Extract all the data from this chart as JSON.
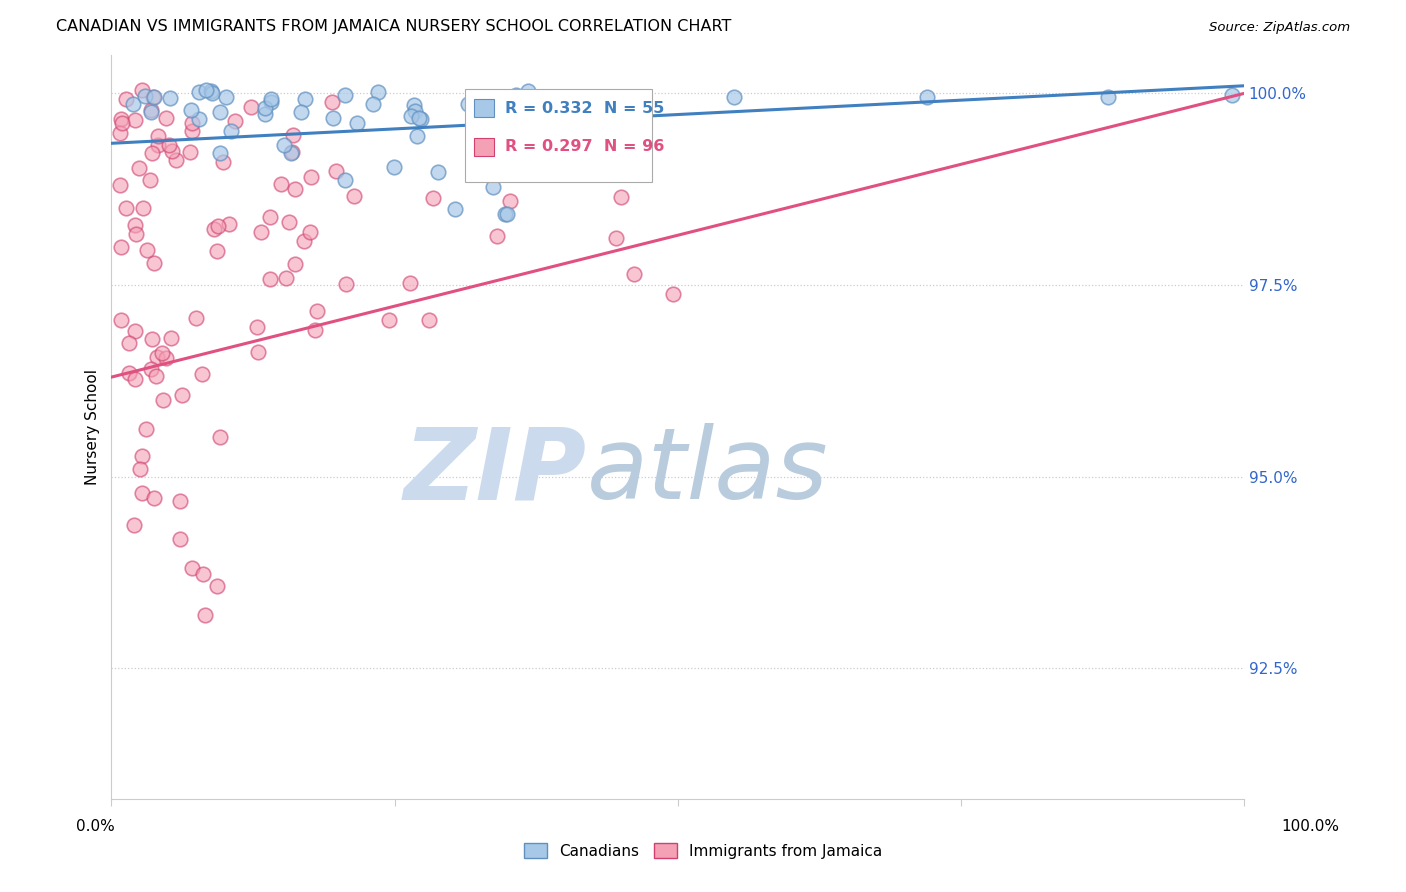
{
  "title": "CANADIAN VS IMMIGRANTS FROM JAMAICA NURSERY SCHOOL CORRELATION CHART",
  "source": "Source: ZipAtlas.com",
  "ylabel": "Nursery School",
  "ytick_values": [
    0.925,
    0.95,
    0.975,
    1.0
  ],
  "ytick_labels": [
    "92.5%",
    "95.0%",
    "97.5%",
    "100.0%"
  ],
  "xrange": [
    0.0,
    1.0
  ],
  "yrange": [
    0.908,
    1.005
  ],
  "blue_R": 0.332,
  "blue_N": 55,
  "pink_R": 0.297,
  "pink_N": 96,
  "legend_label_blue": "Canadians",
  "legend_label_pink": "Immigrants from Jamaica",
  "blue_color": "#a8c8e8",
  "pink_color": "#f4a0b5",
  "blue_edge_color": "#6090c0",
  "pink_edge_color": "#d04070",
  "blue_line_color": "#4080c0",
  "pink_line_color": "#e05080",
  "watermark_zip_color": "#c8d8ee",
  "watermark_atlas_color": "#b8c8de",
  "blue_line_start_y": 0.9935,
  "blue_line_end_y": 1.001,
  "pink_line_start_y": 0.963,
  "pink_line_end_y": 1.0
}
